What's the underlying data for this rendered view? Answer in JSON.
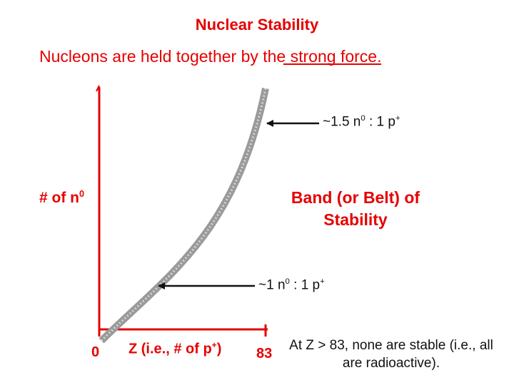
{
  "title": "Nuclear Stability",
  "subtitle": {
    "prefix": "Nucleons are held together by the ",
    "answer": "strong force",
    "suffix": "."
  },
  "y_axis": {
    "label_text": "# of n",
    "label_sup": "0"
  },
  "band_label": "Band (or Belt) of Stability",
  "annotation_top": {
    "prefix": "~1.5 n",
    "sup_n": "0",
    "middle": " : 1 p",
    "sup_p": "+"
  },
  "annotation_bottom": {
    "prefix": "~1 n",
    "sup_n": "0",
    "middle": " : 1 p",
    "sup_p": "+"
  },
  "x_axis": {
    "tick_zero": "0",
    "label_text": "Z (i.e., # of p",
    "label_sup": "+",
    "label_close": ")",
    "tick_83": "83"
  },
  "note": "At Z > 83, none are stable (i.e., all are radioactive).",
  "colors": {
    "title_text": "#e60000",
    "body_text": "#111111",
    "axis": "#e60000",
    "band": "#9a9a9a",
    "arrow": "#111111"
  }
}
